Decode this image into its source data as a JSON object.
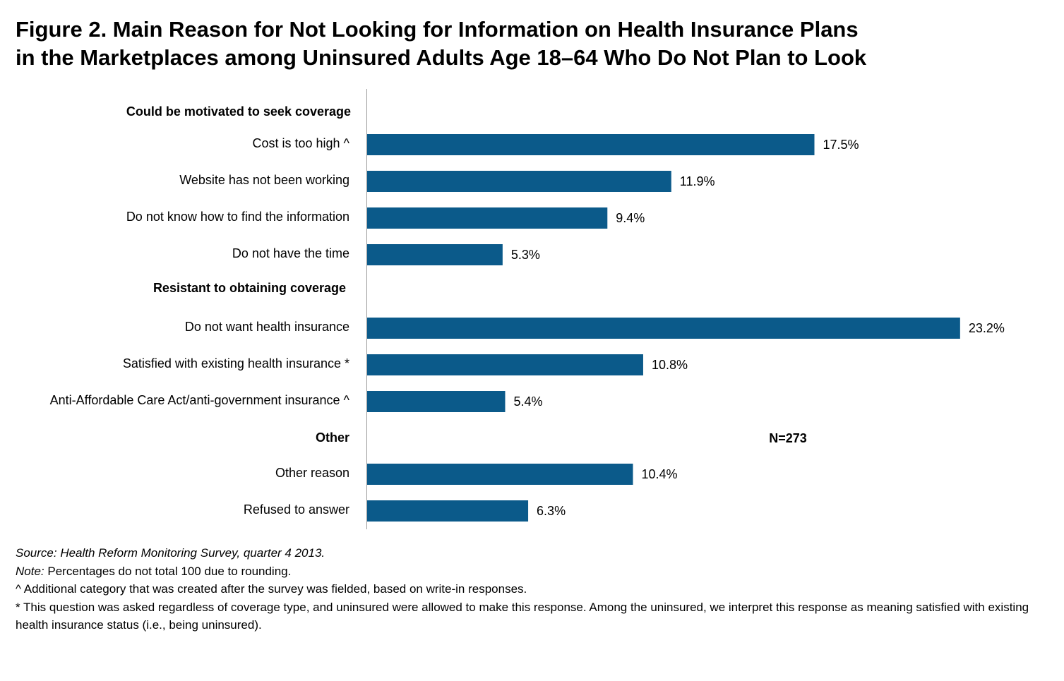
{
  "title": {
    "line1": "Figure 2. Main Reason for Not Looking for Information on Health Insurance Plans",
    "line2": "in the Marketplaces among Uninsured Adults Age 18–64 Who Do Not Plan to Look"
  },
  "chart_data": {
    "type": "bar",
    "orientation": "horizontal",
    "bar_color": "#0b5a8a",
    "xlim": [
      0,
      25
    ],
    "grid": false,
    "annotation": "N=273",
    "groups": [
      {
        "label": "Could be motivated to seek coverage",
        "items": [
          {
            "label": "Cost is too high ^",
            "value": 17.5,
            "value_label": "17.5%"
          },
          {
            "label": "Website has not been working",
            "value": 11.9,
            "value_label": "11.9%"
          },
          {
            "label": "Do not know how to find the information",
            "value": 9.4,
            "value_label": "9.4%"
          },
          {
            "label": "Do not have the time",
            "value": 5.3,
            "value_label": "5.3%"
          }
        ]
      },
      {
        "label": "Resistant to obtaining coverage",
        "items": [
          {
            "label": "Do not want health insurance",
            "value": 23.2,
            "value_label": "23.2%"
          },
          {
            "label": "Satisfied with existing health insurance *",
            "value": 10.8,
            "value_label": "10.8%"
          },
          {
            "label": "Anti-Affordable Care Act/anti-government insurance ^",
            "value": 5.4,
            "value_label": "5.4%"
          }
        ]
      },
      {
        "label": "Other",
        "items": [
          {
            "label": "Other reason",
            "value": 10.4,
            "value_label": "10.4%"
          },
          {
            "label": "Refused to answer",
            "value": 6.3,
            "value_label": "6.3%"
          }
        ]
      }
    ]
  },
  "notes": {
    "source_prefix": "Source:",
    "source_text": " Health Reform Monitoring Survey, quarter 4 2013.",
    "note_prefix": "Note:",
    "note_text": " Percentages do not total 100 due to rounding.",
    "caret_note": "^ Additional category that was created after the survey was fielded, based on write-in responses.",
    "star_note": "* This question was asked regardless of coverage type, and uninsured were allowed to make this response. Among the uninsured, we interpret this response as meaning satisfied with existing health insurance status (i.e., being uninsured)."
  }
}
